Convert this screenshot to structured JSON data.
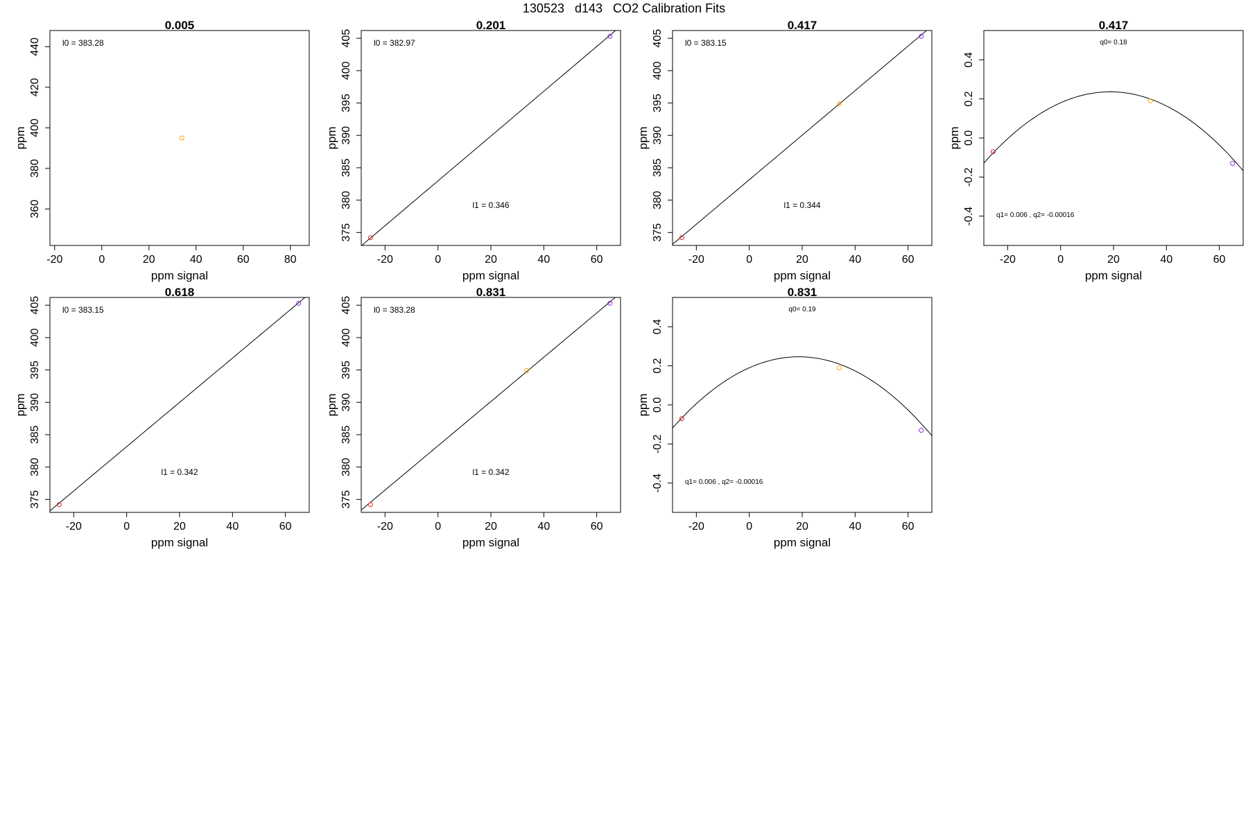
{
  "figure": {
    "title": "130523   d143   CO2 Calibration Fits"
  },
  "chart_data": [
    {
      "type": "scatter",
      "title": "0.005",
      "xlabel": "ppm signal",
      "ylabel": "ppm",
      "xlim": [
        -22,
        88
      ],
      "ylim": [
        342,
        448
      ],
      "xticks": [
        -20,
        0,
        20,
        40,
        60,
        80
      ],
      "yticks": [
        360,
        380,
        400,
        420,
        440
      ],
      "points": [
        {
          "x": 34,
          "y": 395,
          "color": "#ffa500"
        }
      ],
      "annotations": [
        {
          "text": "l0 =  383.28",
          "pos": "top-left"
        }
      ]
    },
    {
      "type": "scatter",
      "title": "0.201",
      "xlabel": "ppm signal",
      "ylabel": "ppm",
      "xlim": [
        -29,
        69
      ],
      "ylim": [
        373,
        406.2
      ],
      "xticks": [
        -20,
        0,
        20,
        40,
        60
      ],
      "yticks": [
        375,
        380,
        385,
        390,
        395,
        400,
        405
      ],
      "points": [
        {
          "x": -25.5,
          "y": 374.2,
          "color": "#e02020"
        },
        {
          "x": 65,
          "y": 405.3,
          "color": "#8a2be2"
        }
      ],
      "fit": {
        "kind": "line",
        "intercept": 382.97,
        "slope": 0.346
      },
      "annotations": [
        {
          "text": "l0 =  382.97",
          "pos": "top-left"
        },
        {
          "text": "l1 =  0.346",
          "pos": "bottom-center"
        }
      ]
    },
    {
      "type": "scatter",
      "title": "0.417",
      "xlabel": "ppm signal",
      "ylabel": "ppm",
      "xlim": [
        -29,
        69
      ],
      "ylim": [
        373,
        406.2
      ],
      "xticks": [
        -20,
        0,
        20,
        40,
        60
      ],
      "yticks": [
        375,
        380,
        385,
        390,
        395,
        400,
        405
      ],
      "points": [
        {
          "x": -25.5,
          "y": 374.2,
          "color": "#e02020"
        },
        {
          "x": 34,
          "y": 394.9,
          "color": "#ffa500"
        },
        {
          "x": 65,
          "y": 405.3,
          "color": "#8a2be2"
        }
      ],
      "fit": {
        "kind": "line",
        "intercept": 383.15,
        "slope": 0.344
      },
      "annotations": [
        {
          "text": "l0 =  383.15",
          "pos": "top-left"
        },
        {
          "text": "l1 =  0.344",
          "pos": "bottom-center"
        }
      ]
    },
    {
      "type": "scatter",
      "title": "0.417",
      "xlabel": "ppm signal",
      "ylabel": "ppm",
      "xlim": [
        -29,
        69
      ],
      "ylim": [
        -0.55,
        0.55
      ],
      "xticks": [
        -20,
        0,
        20,
        40,
        60
      ],
      "yticks": [
        -0.4,
        -0.2,
        0.0,
        0.2,
        0.4
      ],
      "points": [
        {
          "x": -25.5,
          "y": -0.07,
          "color": "#e02020"
        },
        {
          "x": 34,
          "y": 0.19,
          "color": "#ffa500"
        },
        {
          "x": 65,
          "y": -0.13,
          "color": "#8a2be2"
        }
      ],
      "fit": {
        "kind": "quadratic",
        "q0": 0.18,
        "q1": 0.006,
        "q2": -0.00016
      },
      "annotations": [
        {
          "text": "q0= 0.18",
          "pos": "top-center"
        },
        {
          "text": "q1= 0.006 , q2= -0.00016",
          "pos": "bottom-left"
        }
      ]
    },
    {
      "type": "scatter",
      "title": "0.618",
      "xlabel": "ppm signal",
      "ylabel": "ppm",
      "xlim": [
        -29,
        69
      ],
      "ylim": [
        373,
        406.2
      ],
      "xticks": [
        -20,
        0,
        20,
        40,
        60
      ],
      "yticks": [
        375,
        380,
        385,
        390,
        395,
        400,
        405
      ],
      "points": [
        {
          "x": -25.5,
          "y": 374.2,
          "color": "#e02020"
        },
        {
          "x": 65,
          "y": 405.3,
          "color": "#8a2be2"
        }
      ],
      "fit": {
        "kind": "line",
        "intercept": 383.15,
        "slope": 0.342
      },
      "annotations": [
        {
          "text": "l0 =  383.15",
          "pos": "top-left"
        },
        {
          "text": "l1 =  0.342",
          "pos": "bottom-center"
        }
      ]
    },
    {
      "type": "scatter",
      "title": "0.831",
      "xlabel": "ppm signal",
      "ylabel": "ppm",
      "xlim": [
        -29,
        69
      ],
      "ylim": [
        373,
        406.2
      ],
      "xticks": [
        -20,
        0,
        20,
        40,
        60
      ],
      "yticks": [
        375,
        380,
        385,
        390,
        395,
        400,
        405
      ],
      "points": [
        {
          "x": -25.5,
          "y": 374.2,
          "color": "#e02020"
        },
        {
          "x": 33.5,
          "y": 394.9,
          "color": "#ffa500"
        },
        {
          "x": 65,
          "y": 405.3,
          "color": "#8a2be2"
        }
      ],
      "fit": {
        "kind": "line",
        "intercept": 383.28,
        "slope": 0.342
      },
      "annotations": [
        {
          "text": "l0 =  383.28",
          "pos": "top-left"
        },
        {
          "text": "l1 =  0.342",
          "pos": "bottom-center"
        }
      ]
    },
    {
      "type": "scatter",
      "title": "0.831",
      "xlabel": "ppm signal",
      "ylabel": "ppm",
      "xlim": [
        -29,
        69
      ],
      "ylim": [
        -0.55,
        0.55
      ],
      "xticks": [
        -20,
        0,
        20,
        40,
        60
      ],
      "yticks": [
        -0.4,
        -0.2,
        0.0,
        0.2,
        0.4
      ],
      "points": [
        {
          "x": -25.5,
          "y": -0.07,
          "color": "#e02020"
        },
        {
          "x": 34,
          "y": 0.19,
          "color": "#ffa500"
        },
        {
          "x": 65,
          "y": -0.13,
          "color": "#8a2be2"
        }
      ],
      "fit": {
        "kind": "quadratic",
        "q0": 0.19,
        "q1": 0.006,
        "q2": -0.00016
      },
      "annotations": [
        {
          "text": "q0= 0.19",
          "pos": "top-center"
        },
        {
          "text": "q1= 0.006 , q2= -0.00016",
          "pos": "bottom-left"
        }
      ]
    }
  ]
}
